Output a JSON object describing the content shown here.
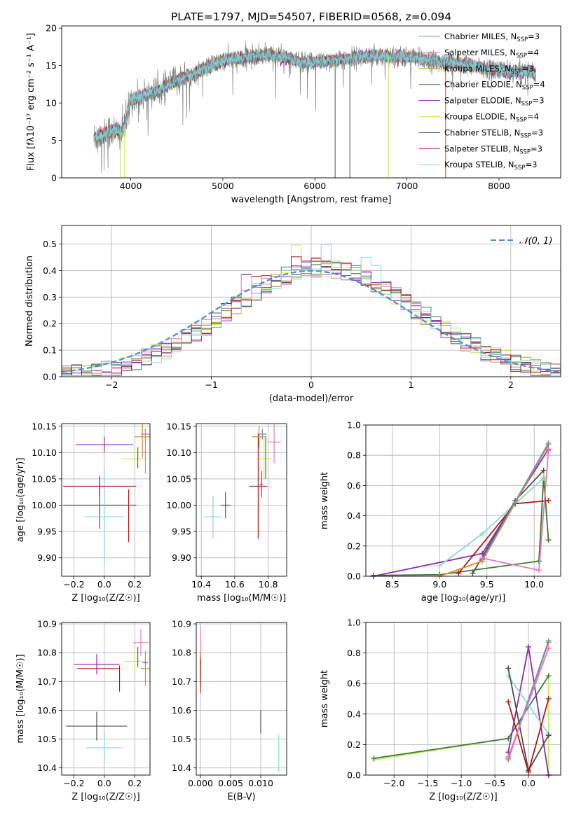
{
  "colors": {
    "chabrier_miles": "#6c8ebf",
    "salpeter_miles": "#e377c2",
    "kroupa_miles": "#e08a1e",
    "chabrier_elodie": "#3d7a3d",
    "salpeter_elodie": "#8e2ab0",
    "kroupa_elodie": "#c6ea5a",
    "chabrier_stelib": "#4d4d4d",
    "salpeter_stelib": "#b01818",
    "kroupa_stelib": "#86d6dc",
    "gaussian": "#5b8ad6"
  },
  "chart_data": [
    {
      "id": "spectrum",
      "type": "line",
      "title": "PLATE=1797, MJD=54507, FIBERID=0568, z=0.094",
      "xlabel": "wavelength [Angstrom, rest frame]",
      "ylabel": "Flux [fλ10⁻¹⁷ erg cm⁻² s⁻¹ A⁻¹]",
      "xlim": [
        3250,
        8670
      ],
      "ylim": [
        0,
        20.3
      ],
      "xticks": [
        4000,
        5000,
        6000,
        7000,
        8000
      ],
      "yticks": [
        0,
        5,
        10,
        15,
        20
      ],
      "grid": false,
      "legend_position": "right",
      "legend": [
        {
          "label": "Chabrier MILES, N",
          "sub": "SSP",
          "suffix": "=3",
          "color_key": "chabrier_miles"
        },
        {
          "label": "Salpeter MILES, N",
          "sub": "SSP",
          "suffix": "=4",
          "color_key": "salpeter_miles"
        },
        {
          "label": "Kroupa MILES, N",
          "sub": "SSP",
          "suffix": "=3",
          "color_key": "kroupa_miles"
        },
        {
          "label": "Chabrier ELODIE, N",
          "sub": "SSP",
          "suffix": "=4",
          "color_key": "chabrier_elodie"
        },
        {
          "label": "Salpeter ELODIE, N",
          "sub": "SSP",
          "suffix": "=3",
          "color_key": "salpeter_elodie"
        },
        {
          "label": "Kroupa ELODIE, N",
          "sub": "SSP",
          "suffix": "=4",
          "color_key": "kroupa_elodie"
        },
        {
          "label": "Chabrier STELIB, N",
          "sub": "SSP",
          "suffix": "=3",
          "color_key": "chabrier_stelib"
        },
        {
          "label": "Salpeter STELIB, N",
          "sub": "SSP",
          "suffix": "=3",
          "color_key": "salpeter_stelib"
        },
        {
          "label": "Kroupa STELIB, N",
          "sub": "SSP",
          "suffix": "=3",
          "color_key": "kroupa_stelib"
        }
      ],
      "continuum": [
        [
          3600,
          5.2
        ],
        [
          3700,
          5.8
        ],
        [
          3800,
          6.3
        ],
        [
          3900,
          6.0
        ],
        [
          3950,
          7.5
        ],
        [
          4000,
          10.5
        ],
        [
          4100,
          10.8
        ],
        [
          4200,
          11.3
        ],
        [
          4300,
          11.6
        ],
        [
          4400,
          12.4
        ],
        [
          4500,
          13.0
        ],
        [
          4600,
          13.6
        ],
        [
          4700,
          13.9
        ],
        [
          4800,
          14.6
        ],
        [
          4900,
          15.2
        ],
        [
          5000,
          15.6
        ],
        [
          5100,
          15.9
        ],
        [
          5200,
          16.0
        ],
        [
          5300,
          16.2
        ],
        [
          5400,
          16.3
        ],
        [
          5500,
          16.5
        ],
        [
          5600,
          16.2
        ],
        [
          5700,
          16.0
        ],
        [
          5800,
          15.6
        ],
        [
          5900,
          15.3
        ],
        [
          6000,
          15.4
        ],
        [
          6100,
          15.6
        ],
        [
          6200,
          15.7
        ],
        [
          6300,
          15.8
        ],
        [
          6400,
          16.0
        ],
        [
          6500,
          16.2
        ],
        [
          6600,
          16.2
        ],
        [
          6700,
          16.3
        ],
        [
          6800,
          16.2
        ],
        [
          6900,
          16.2
        ],
        [
          7000,
          16.1
        ],
        [
          7100,
          16.0
        ],
        [
          7200,
          15.8
        ],
        [
          7300,
          15.6
        ],
        [
          7400,
          15.3
        ],
        [
          7500,
          15.4
        ],
        [
          7600,
          15.2
        ],
        [
          7700,
          14.9
        ],
        [
          7800,
          14.7
        ],
        [
          7900,
          14.5
        ],
        [
          8000,
          14.4
        ],
        [
          8100,
          14.2
        ],
        [
          8200,
          14.2
        ],
        [
          8300,
          14.2
        ],
        [
          8400,
          14.0
        ]
      ],
      "dips": [
        [
          3890,
          0
        ],
        [
          3930,
          0
        ],
        [
          6220,
          0
        ],
        [
          6380,
          0
        ],
        [
          6800,
          0
        ],
        [
          7420,
          0
        ]
      ]
    },
    {
      "id": "residuals",
      "type": "line",
      "xlabel": "(data-model)/error",
      "ylabel": "Normed distribution",
      "xlim": [
        -2.5,
        2.5
      ],
      "ylim": [
        0,
        0.57
      ],
      "xticks": [
        -2,
        -1,
        0,
        1,
        2
      ],
      "yticks": [
        0.0,
        0.1,
        0.2,
        0.3,
        0.4,
        0.5
      ],
      "grid": true,
      "legend_position": "top-right",
      "gaussian_label": "𝒩(0, 1)",
      "bin_width": 0.1,
      "peak_height": 0.52
    },
    {
      "id": "age_vs_Z",
      "type": "scatter",
      "xlabel": "Z [log₁₀(Z/Z☉)]",
      "ylabel": "age  [log₁₀(age/yr)]",
      "xlim": [
        -0.28,
        0.3
      ],
      "ylim": [
        9.865,
        10.155
      ],
      "xticks": [
        -0.2,
        0.0,
        0.2
      ],
      "yticks": [
        9.9,
        9.95,
        10.0,
        10.05,
        10.1,
        10.15
      ],
      "grid": true,
      "points": [
        {
          "color_key": "chabrier_stelib",
          "x": -0.03,
          "xerr": 0.24,
          "y": 10.0,
          "yerr": 0.045
        },
        {
          "color_key": "kroupa_stelib",
          "x": 0.0,
          "xerr": 0.13,
          "y": 9.978,
          "yerr": 0.09
        },
        {
          "color_key": "salpeter_stelib",
          "x": -0.03,
          "xerr": 0.24,
          "y": 10.036,
          "yerr": 0.02
        },
        {
          "color_key": "salpeter_stelib",
          "x": 0.16,
          "xerr": 0.0,
          "y": 9.98,
          "yerr": 0.05
        },
        {
          "color_key": "salpeter_elodie",
          "x": 0.0,
          "xerr": 0.19,
          "y": 10.115,
          "yerr": 0.015
        },
        {
          "color_key": "kroupa_elodie",
          "x": 0.2,
          "xerr": 0.08,
          "y": 10.088,
          "yerr": 0.02
        },
        {
          "color_key": "chabrier_elodie",
          "x": 0.22,
          "xerr": 0.0,
          "y": 10.09,
          "yerr": 0.02
        },
        {
          "color_key": "kroupa_miles",
          "x": 0.25,
          "xerr": 0.05,
          "y": 10.13,
          "yerr": 0.04
        },
        {
          "color_key": "chabrier_miles",
          "x": 0.27,
          "xerr": 0.03,
          "y": 10.135,
          "yerr": 0.01
        },
        {
          "color_key": "salpeter_miles",
          "x": 0.27,
          "xerr": 0.01,
          "y": 10.1,
          "yerr": 0.04
        }
      ]
    },
    {
      "id": "age_vs_mass",
      "type": "scatter",
      "xlabel": "mass [log₁₀(M/M☉)]",
      "ylabel": "",
      "xlim": [
        10.37,
        10.91
      ],
      "ylim": [
        9.865,
        10.155
      ],
      "xticks": [
        10.4,
        10.6,
        10.8
      ],
      "yticks": [
        9.9,
        9.95,
        10.0,
        10.05,
        10.1,
        10.15
      ],
      "grid": true,
      "points": [
        {
          "color_key": "chabrier_stelib",
          "x": 10.545,
          "xerr": 0.03,
          "y": 10.0,
          "yerr": 0.025
        },
        {
          "color_key": "kroupa_stelib",
          "x": 10.47,
          "xerr": 0.055,
          "y": 9.978,
          "yerr": 0.04
        },
        {
          "color_key": "salpeter_stelib",
          "x": 10.74,
          "xerr": 0.055,
          "y": 10.036,
          "yerr": 0.1
        },
        {
          "color_key": "salpeter_elodie",
          "x": 10.76,
          "xerr": 0.01,
          "y": 10.04,
          "yerr": 0.025
        },
        {
          "color_key": "kroupa_elodie",
          "x": 10.775,
          "xerr": 0.05,
          "y": 10.088,
          "yerr": 0.04
        },
        {
          "color_key": "chabrier_elodie",
          "x": 10.785,
          "xerr": 0.0,
          "y": 10.09,
          "yerr": 0.04
        },
        {
          "color_key": "kroupa_miles",
          "x": 10.745,
          "xerr": 0.045,
          "y": 10.13,
          "yerr": 0.02
        },
        {
          "color_key": "chabrier_miles",
          "x": 10.765,
          "xerr": 0.025,
          "y": 10.135,
          "yerr": 0.01
        },
        {
          "color_key": "salpeter_miles",
          "x": 10.835,
          "xerr": 0.04,
          "y": 10.12,
          "yerr": 0.04
        }
      ]
    },
    {
      "id": "weight_vs_age",
      "type": "line",
      "xlabel": "age  [log₁₀(age/yr)]",
      "ylabel": "mass weight",
      "xlim": [
        8.22,
        10.28
      ],
      "ylim": [
        0,
        1.0
      ],
      "xticks": [
        8.5,
        9.0,
        9.5,
        10.0
      ],
      "yticks": [
        0.0,
        0.2,
        0.4,
        0.6,
        0.8,
        1.0
      ],
      "grid": true,
      "series": [
        {
          "color_key": "kroupa_elodie",
          "x": [
            8.3,
            9.0,
            10.05,
            10.1,
            10.15
          ],
          "y": [
            0.005,
            0.01,
            0.1,
            0.7,
            0.24
          ]
        },
        {
          "color_key": "chabrier_elodie",
          "x": [
            8.3,
            9.0,
            10.05,
            10.1,
            10.15
          ],
          "y": [
            0.005,
            0.01,
            0.1,
            0.65,
            0.24
          ]
        },
        {
          "color_key": "salpeter_elodie",
          "x": [
            8.3,
            9.45,
            10.15
          ],
          "y": [
            0.0,
            0.15,
            0.84
          ]
        },
        {
          "color_key": "kroupa_stelib",
          "x": [
            9.0,
            9.45,
            10.1
          ],
          "y": [
            0.07,
            0.28,
            0.65
          ]
        },
        {
          "color_key": "chabrier_stelib",
          "x": [
            9.35,
            9.8,
            10.1
          ],
          "y": [
            0.02,
            0.5,
            0.7
          ]
        },
        {
          "color_key": "salpeter_stelib",
          "x": [
            9.2,
            9.8,
            10.15
          ],
          "y": [
            0.02,
            0.48,
            0.5
          ]
        },
        {
          "color_key": "kroupa_miles",
          "x": [
            9.0,
            9.45,
            10.15
          ],
          "y": [
            0.0,
            0.1,
            0.87
          ]
        },
        {
          "color_key": "chabrier_miles",
          "x": [
            9.45,
            10.15
          ],
          "y": [
            0.11,
            0.88
          ]
        },
        {
          "color_key": "salpeter_miles",
          "x": [
            9.45,
            10.05,
            10.15
          ],
          "y": [
            0.12,
            0.04,
            0.83
          ]
        }
      ]
    },
    {
      "id": "mass_vs_Z",
      "type": "scatter",
      "xlabel": "Z [log₁₀(Z/Z☉)]",
      "ylabel": "mass [log₁₀(M/M☉)]",
      "xlim": [
        -0.28,
        0.3
      ],
      "ylim": [
        10.375,
        10.905
      ],
      "xticks": [
        -0.2,
        0.0,
        0.2
      ],
      "yticks": [
        10.4,
        10.5,
        10.6,
        10.7,
        10.8,
        10.9
      ],
      "grid": true,
      "points": [
        {
          "color_key": "chabrier_stelib",
          "x": -0.05,
          "xerr": 0.2,
          "y": 10.545,
          "yerr": 0.05
        },
        {
          "color_key": "kroupa_stelib",
          "x": 0.0,
          "xerr": 0.12,
          "y": 10.47,
          "yerr": 0.06
        },
        {
          "color_key": "salpeter_stelib",
          "x": -0.04,
          "xerr": 0.14,
          "y": 10.745,
          "yerr": 0.0
        },
        {
          "color_key": "salpeter_stelib",
          "x": 0.1,
          "xerr": 0.0,
          "y": 10.71,
          "yerr": 0.045
        },
        {
          "color_key": "salpeter_elodie",
          "x": -0.05,
          "xerr": 0.15,
          "y": 10.76,
          "yerr": 0.035
        },
        {
          "color_key": "kroupa_elodie",
          "x": 0.2,
          "xerr": 0.07,
          "y": 10.77,
          "yerr": 0.04
        },
        {
          "color_key": "chabrier_elodie",
          "x": 0.22,
          "xerr": 0.0,
          "y": 10.785,
          "yerr": 0.035
        },
        {
          "color_key": "kroupa_miles",
          "x": 0.27,
          "xerr": 0.03,
          "y": 10.745,
          "yerr": 0.06
        },
        {
          "color_key": "chabrier_miles",
          "x": 0.27,
          "xerr": 0.02,
          "y": 10.765,
          "yerr": 0.01
        },
        {
          "color_key": "salpeter_miles",
          "x": 0.24,
          "xerr": 0.05,
          "y": 10.835,
          "yerr": 0.045
        }
      ]
    },
    {
      "id": "mass_vs_EBV",
      "type": "scatter",
      "xlabel": "E(B-V)",
      "ylabel": "",
      "xlim": [
        -0.0007,
        0.0143
      ],
      "ylim": [
        10.375,
        10.905
      ],
      "xticks": [
        0.0,
        0.005,
        0.01
      ],
      "xtick_labels": [
        "0.000",
        "0.005",
        "0.010"
      ],
      "yticks": [
        10.4,
        10.5,
        10.6,
        10.7,
        10.8,
        10.9
      ],
      "grid": true,
      "points": [
        {
          "color_key": "salpeter_miles",
          "x": 0.0,
          "xerr": 0.0,
          "y": 10.835,
          "yerr": 0.06
        },
        {
          "color_key": "chabrier_elodie",
          "x": 0.0,
          "xerr": 0.0,
          "y": 10.76,
          "yerr": 0.04
        },
        {
          "color_key": "kroupa_miles",
          "x": 0.0,
          "xerr": 0.0,
          "y": 10.745,
          "yerr": 0.06
        },
        {
          "color_key": "salpeter_stelib",
          "x": 0.0,
          "xerr": 0.0,
          "y": 10.72,
          "yerr": 0.06
        },
        {
          "color_key": "chabrier_stelib",
          "x": 0.01,
          "xerr": 0.0,
          "y": 10.56,
          "yerr": 0.04
        },
        {
          "color_key": "kroupa_stelib",
          "x": 0.013,
          "xerr": 0.0,
          "y": 10.45,
          "yerr": 0.065
        }
      ]
    },
    {
      "id": "weight_vs_Z",
      "type": "line",
      "xlabel": "Z [log₁₀(Z/Z☉)]",
      "ylabel": "mass weight",
      "xlim": [
        -2.42,
        0.48
      ],
      "ylim": [
        0,
        1.0
      ],
      "xticks": [
        -2.0,
        -1.5,
        -1.0,
        -0.5,
        0.0
      ],
      "yticks": [
        0.0,
        0.2,
        0.4,
        0.6,
        0.8,
        1.0
      ],
      "grid": true,
      "series": [
        {
          "color_key": "kroupa_elodie",
          "x": [
            -2.3,
            -0.3,
            0.3,
            0.3
          ],
          "y": [
            0.1,
            0.24,
            0.65,
            0.0
          ]
        },
        {
          "color_key": "chabrier_elodie",
          "x": [
            -2.3,
            -0.3,
            0.3
          ],
          "y": [
            0.11,
            0.24,
            0.65
          ]
        },
        {
          "color_key": "salpeter_elodie",
          "x": [
            -0.3,
            0.0,
            0.3
          ],
          "y": [
            0.15,
            0.84,
            0.0
          ]
        },
        {
          "color_key": "kroupa_stelib",
          "x": [
            -0.3,
            0.3
          ],
          "y": [
            0.65,
            0.27
          ]
        },
        {
          "color_key": "chabrier_stelib",
          "x": [
            -0.3,
            0.0,
            0.3
          ],
          "y": [
            0.7,
            0.03,
            0.26
          ]
        },
        {
          "color_key": "salpeter_stelib",
          "x": [
            -0.3,
            0.0,
            0.3
          ],
          "y": [
            0.48,
            0.02,
            0.5
          ]
        },
        {
          "color_key": "kroupa_miles",
          "x": [
            -0.3,
            0.3
          ],
          "y": [
            0.1,
            0.87
          ]
        },
        {
          "color_key": "chabrier_miles",
          "x": [
            -0.3,
            0.3
          ],
          "y": [
            0.11,
            0.88
          ]
        },
        {
          "color_key": "salpeter_miles",
          "x": [
            -0.3,
            0.3
          ],
          "y": [
            0.12,
            0.83
          ]
        }
      ]
    }
  ]
}
